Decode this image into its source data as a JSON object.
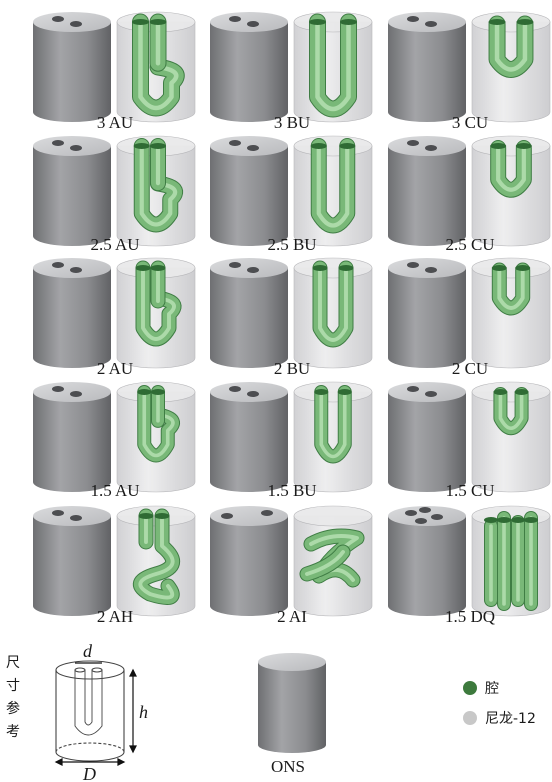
{
  "figure": {
    "cells": [
      {
        "id": "3AU",
        "label": "3 AU",
        "shape": "AU",
        "size": 3
      },
      {
        "id": "3BU",
        "label": "3 BU",
        "shape": "BU",
        "size": 3
      },
      {
        "id": "3CU",
        "label": "3 CU",
        "shape": "CU",
        "size": 3
      },
      {
        "id": "25AU",
        "label": "2.5 AU",
        "shape": "AU",
        "size": 2.5
      },
      {
        "id": "25BU",
        "label": "2.5 BU",
        "shape": "BU",
        "size": 2.5
      },
      {
        "id": "25CU",
        "label": "2.5 CU",
        "shape": "CU",
        "size": 2.5
      },
      {
        "id": "2AU",
        "label": "2 AU",
        "shape": "AU",
        "size": 2
      },
      {
        "id": "2BU",
        "label": "2 BU",
        "shape": "BU",
        "size": 2
      },
      {
        "id": "2CU",
        "label": "2 CU",
        "shape": "CU",
        "size": 2
      },
      {
        "id": "15AU",
        "label": "1.5 AU",
        "shape": "AU",
        "size": 1.5
      },
      {
        "id": "15BU",
        "label": "1.5 BU",
        "shape": "BU",
        "size": 1.5
      },
      {
        "id": "15CU",
        "label": "1.5 CU",
        "shape": "CU",
        "size": 1.5
      },
      {
        "id": "2AH",
        "label": "2 AH",
        "shape": "AH",
        "size": 2
      },
      {
        "id": "2AI",
        "label": "2 AI",
        "shape": "AI",
        "size": 2
      },
      {
        "id": "15DQ",
        "label": "1.5 DQ",
        "shape": "DQ",
        "size": 1.5
      }
    ],
    "reference_cylinder": {
      "label": "ONS"
    },
    "dimension_reference": {
      "title_chars": [
        "尺",
        "寸",
        "参",
        "考"
      ],
      "d_label": "d",
      "h_label": "h",
      "D_label": "D"
    },
    "legend": [
      {
        "label": "腔",
        "color": "#3d7a3d"
      },
      {
        "label": "尼龙-12",
        "color": "#c8c8c8"
      }
    ],
    "colors": {
      "solid_gray": "#8f9093",
      "transparent_gray": "#dcdcde",
      "tube_green": "#6fae6f",
      "tube_dark": "#3f7d44"
    }
  }
}
